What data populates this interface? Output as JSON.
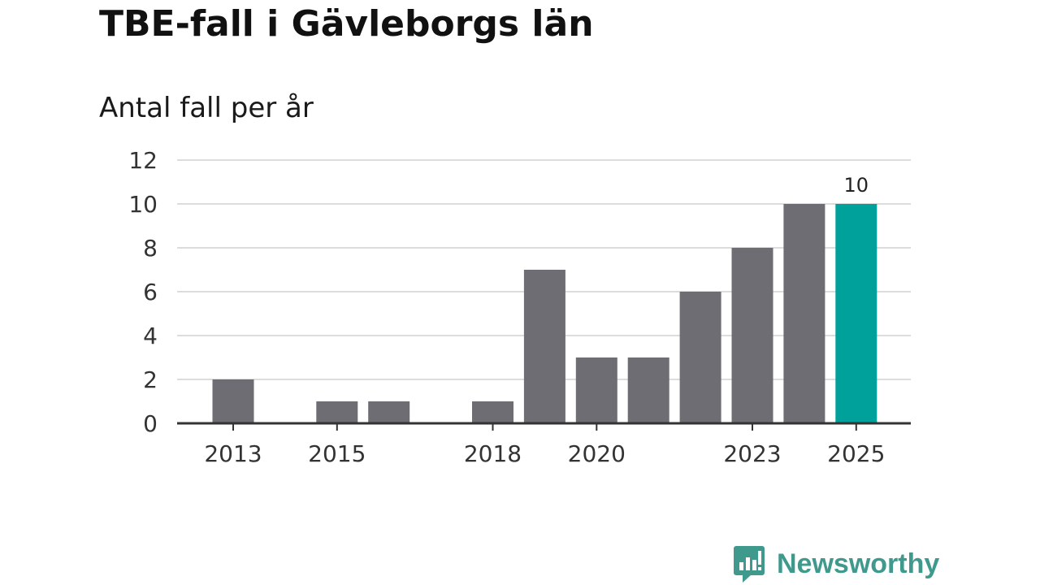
{
  "title": "TBE-fall i Gävleborgs län",
  "subtitle": "Antal fall per år",
  "brand": {
    "name": "Newsworthy",
    "color": "#3f9a8d"
  },
  "chart_data": {
    "type": "bar",
    "title": "TBE-fall i Gävleborgs län",
    "subtitle": "Antal fall per år",
    "xlabel": "",
    "ylabel": "",
    "categories": [
      "2013",
      "2014",
      "2015",
      "2016",
      "2017",
      "2018",
      "2019",
      "2020",
      "2021",
      "2022",
      "2023",
      "2024",
      "2025"
    ],
    "values": [
      2,
      0,
      1,
      1,
      0,
      1,
      7,
      3,
      3,
      6,
      8,
      10,
      10
    ],
    "x_tick_labels": [
      "2013",
      "2015",
      "2018",
      "2020",
      "2023",
      "2025"
    ],
    "yticks": [
      0,
      2,
      4,
      6,
      8,
      10,
      12
    ],
    "ylim": [
      0,
      12
    ],
    "grid": true,
    "bar_color": "#6e6d73",
    "highlight_color": "#00a19a",
    "highlight_category": "2025",
    "data_labels": [
      {
        "category": "2025",
        "text": "10"
      }
    ]
  }
}
